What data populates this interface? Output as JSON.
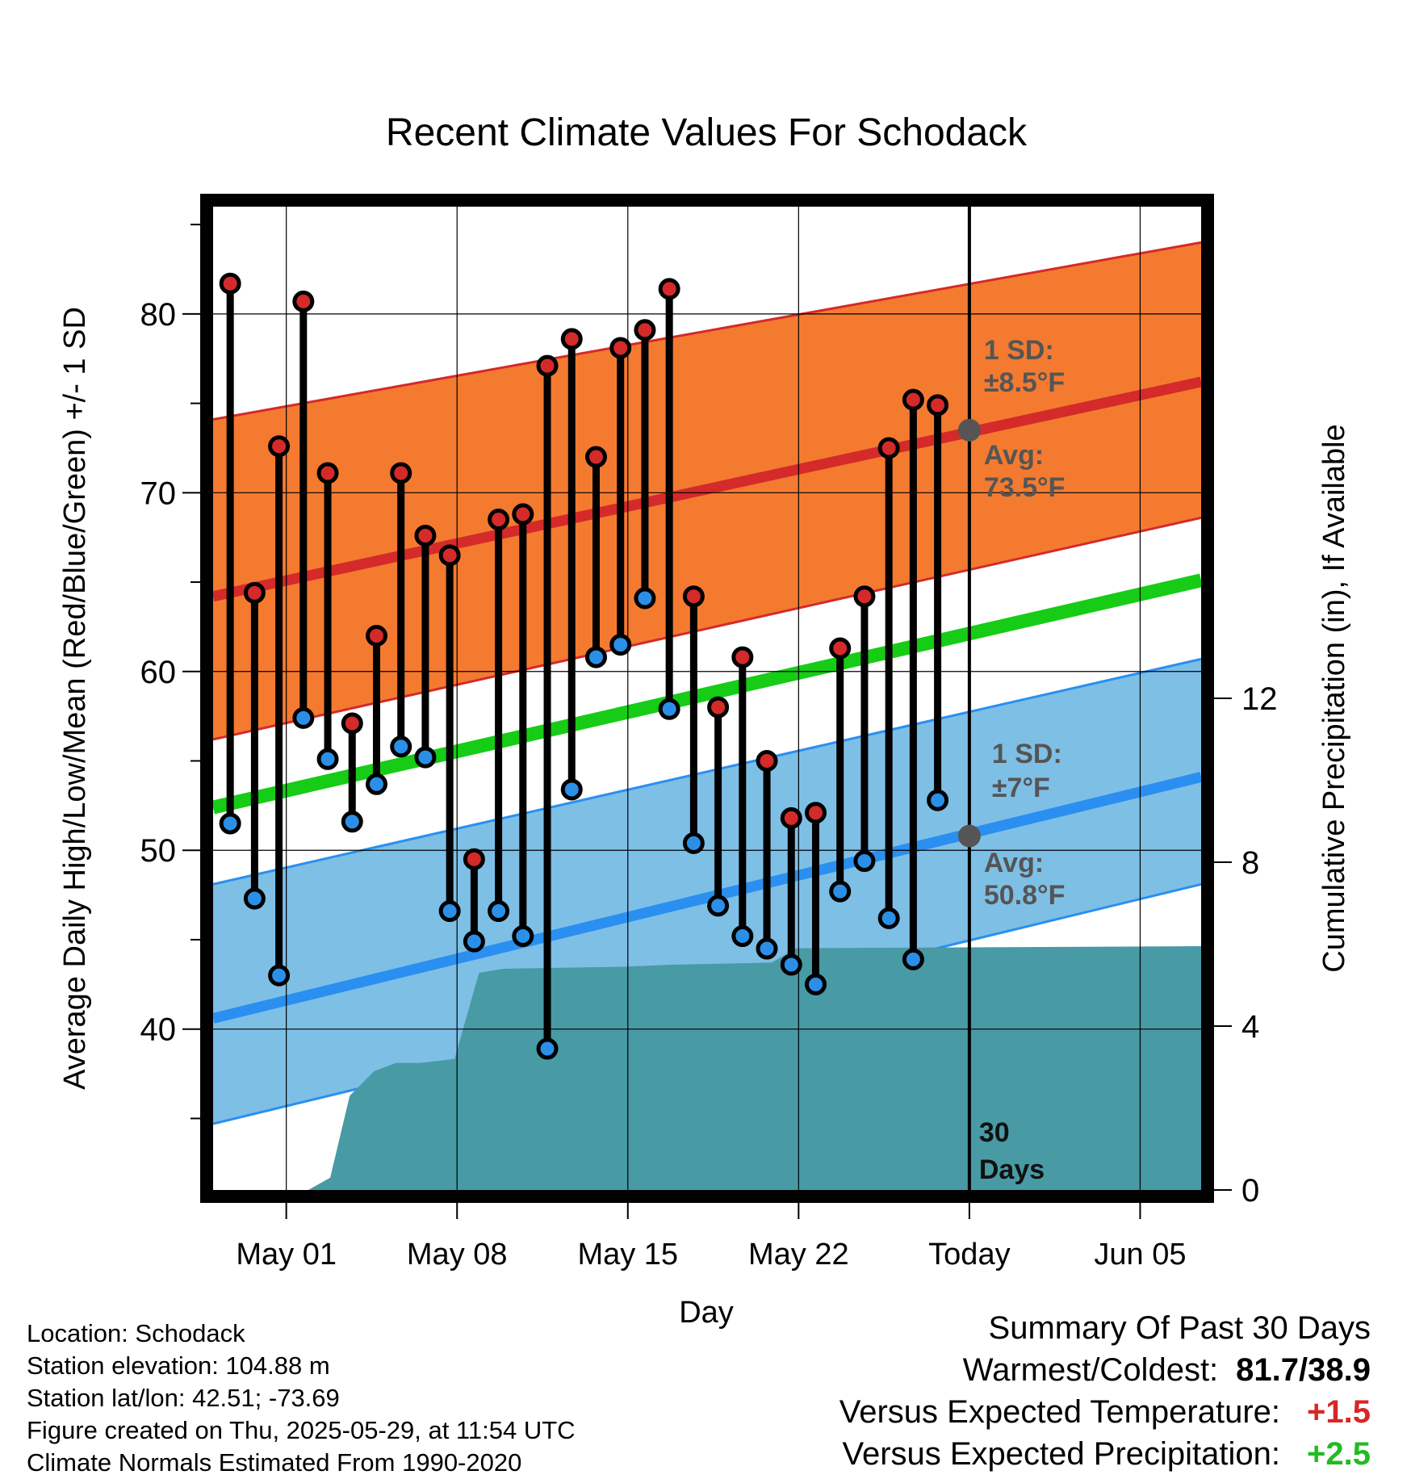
{
  "chart_data": {
    "type": "line",
    "title": "Recent Climate Values For Schodack",
    "xlabel": "Day",
    "ylabel": "Average Daily High/Low/Mean (Red/Blue/Green) +/- 1 SD",
    "y2label": "Cumulative Precipitation (in), If Available",
    "ylim": [
      31,
      86
    ],
    "y2lim": [
      0,
      24
    ],
    "yticks": [
      40,
      50,
      60,
      70,
      80
    ],
    "y2ticks": [
      0,
      4,
      8,
      12
    ],
    "x_ticks": [
      {
        "day": 3,
        "label": "May 01"
      },
      {
        "day": 10,
        "label": "May 08"
      },
      {
        "day": 17,
        "label": "May 15"
      },
      {
        "day": 24,
        "label": "May 22"
      },
      {
        "day": 31,
        "label": "Today"
      },
      {
        "day": 38,
        "label": "Jun 05"
      }
    ],
    "xlim": [
      0,
      40.5
    ],
    "grid": true,
    "normal_high": {
      "start": 64.2,
      "end": 76.2
    },
    "normal_low": {
      "start": 40.6,
      "end": 54.1
    },
    "normal_mean": {
      "start": 52.4,
      "end": 65.1
    },
    "high_sd_band": {
      "lower_start": 56.2,
      "lower_end": 68.6,
      "upper_start": 74.1,
      "upper_end": 84.0
    },
    "low_sd_band": {
      "lower_start": 34.7,
      "lower_end": 48.1,
      "upper_start": 48.1,
      "upper_end": 60.7
    },
    "today_day": 31,
    "high_annotation": {
      "sd_label": "1 SD:",
      "sd_value": "±8.5°F",
      "avg_label": "Avg:",
      "avg_value": "73.5°F",
      "avg": 73.5
    },
    "low_annotation": {
      "sd_label": "1 SD:",
      "sd_value": "±7°F",
      "avg_label": "Avg:",
      "avg_value": "50.8°F",
      "avg": 50.8
    },
    "days_label_1": "30",
    "days_label_2": "Days",
    "daily": [
      {
        "day": 0.7,
        "high": 81.7,
        "low": 51.5
      },
      {
        "day": 1.7,
        "high": 64.4,
        "low": 47.3
      },
      {
        "day": 2.7,
        "high": 72.6,
        "low": 43.0
      },
      {
        "day": 3.7,
        "high": 80.7,
        "low": 57.4
      },
      {
        "day": 4.7,
        "high": 71.1,
        "low": 55.1
      },
      {
        "day": 5.7,
        "high": 57.1,
        "low": 51.6
      },
      {
        "day": 6.7,
        "high": 62.0,
        "low": 53.7
      },
      {
        "day": 7.7,
        "high": 71.1,
        "low": 55.8
      },
      {
        "day": 8.7,
        "high": 67.6,
        "low": 55.2
      },
      {
        "day": 9.7,
        "high": 66.5,
        "low": 46.6
      },
      {
        "day": 10.7,
        "high": 49.5,
        "low": 44.9
      },
      {
        "day": 11.7,
        "high": 68.5,
        "low": 46.6
      },
      {
        "day": 12.7,
        "high": 68.8,
        "low": 45.2
      },
      {
        "day": 13.7,
        "high": 77.1,
        "low": 38.9
      },
      {
        "day": 14.7,
        "high": 78.6,
        "low": 53.4
      },
      {
        "day": 15.7,
        "high": 72.0,
        "low": 60.8
      },
      {
        "day": 16.7,
        "high": 78.1,
        "low": 61.5
      },
      {
        "day": 17.7,
        "high": 79.1,
        "low": 64.1
      },
      {
        "day": 18.7,
        "high": 81.4,
        "low": 57.9
      },
      {
        "day": 19.7,
        "high": 64.2,
        "low": 50.4
      },
      {
        "day": 20.7,
        "high": 58.0,
        "low": 46.9
      },
      {
        "day": 21.7,
        "high": 60.8,
        "low": 45.2
      },
      {
        "day": 22.7,
        "high": 55.0,
        "low": 44.5
      },
      {
        "day": 23.7,
        "high": 51.8,
        "low": 43.6
      },
      {
        "day": 24.7,
        "high": 52.1,
        "low": 42.5
      },
      {
        "day": 25.7,
        "high": 61.3,
        "low": 47.7
      },
      {
        "day": 26.7,
        "high": 64.2,
        "low": 49.4
      },
      {
        "day": 27.7,
        "high": 72.5,
        "low": 46.2
      },
      {
        "day": 28.7,
        "high": 75.2,
        "low": 43.9
      },
      {
        "day": 29.7,
        "high": 74.9,
        "low": 52.8
      }
    ],
    "precip_cumulative": [
      {
        "day": 3.9,
        "value": 0.0
      },
      {
        "day": 4.8,
        "value": 0.3
      },
      {
        "day": 5.6,
        "value": 2.3
      },
      {
        "day": 6.6,
        "value": 2.9
      },
      {
        "day": 7.5,
        "value": 3.1
      },
      {
        "day": 8.5,
        "value": 3.1
      },
      {
        "day": 9.9,
        "value": 3.2
      },
      {
        "day": 10.9,
        "value": 5.3
      },
      {
        "day": 11.9,
        "value": 5.4
      },
      {
        "day": 16.9,
        "value": 5.45
      },
      {
        "day": 18.9,
        "value": 5.5
      },
      {
        "day": 22.9,
        "value": 5.55
      },
      {
        "day": 23.9,
        "value": 5.9
      },
      {
        "day": 40.5,
        "value": 5.95
      }
    ],
    "colors": {
      "high_band": "#f47a30",
      "high_line": "#d42a2a",
      "low_band": "#7ebfe6",
      "low_line": "#2a8ff0",
      "mean_line": "#16cc16",
      "precip": "#489aa5",
      "high_dot": "#d42a2a",
      "low_dot": "#2b8fe8",
      "today_dot": "#555555"
    }
  },
  "footer": {
    "location": "Location: Schodack",
    "elevation": "Station elevation: 104.88 m",
    "latlon": "Station lat/lon: 42.51; -73.69",
    "created": "Figure created on Thu, 2025-05-29, at 11:54 UTC",
    "normals": "Climate Normals Estimated From 1990-2020"
  },
  "summary": {
    "heading": "Summary Of Past 30 Days",
    "warmest_label": "Warmest/Coldest:",
    "warmest_value": "81.7/38.9",
    "temp_label": "Versus Expected Temperature:",
    "temp_value": "+1.5",
    "precip_label": "Versus Expected Precipitation:",
    "precip_value": "+2.5"
  }
}
